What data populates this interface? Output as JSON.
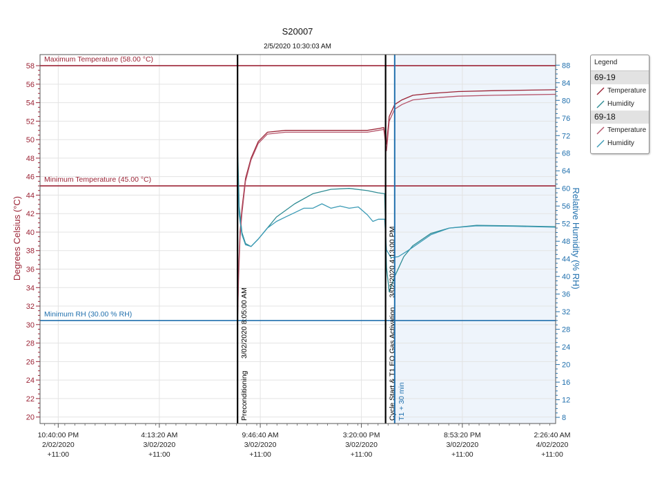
{
  "chart_data": {
    "type": "line",
    "title": "S20007",
    "subtitle": "2/5/2020 10:30:03 AM",
    "ylabel_left": "Degrees Celsius (°C)",
    "ylabel_right": "Relative Humidity (% RH)",
    "xlabel": "",
    "x_range_hours": [
      0,
      28.35
    ],
    "ylim_left": [
      19.3,
      59.2
    ],
    "ylim_right": [
      6.6,
      90.4
    ],
    "y_ticks_left": [
      20,
      22,
      24,
      26,
      28,
      30,
      32,
      34,
      36,
      38,
      40,
      42,
      44,
      46,
      48,
      50,
      52,
      54,
      56,
      58
    ],
    "y_ticks_right": [
      8,
      12,
      16,
      20,
      24,
      28,
      32,
      36,
      40,
      44,
      48,
      52,
      56,
      60,
      64,
      68,
      72,
      76,
      80,
      84,
      88
    ],
    "x_ticks": [
      {
        "t": 1.0,
        "lines": [
          "10:40:00 PM",
          "2/02/2020",
          "+11:00"
        ]
      },
      {
        "t": 6.56,
        "lines": [
          "4:13:20 AM",
          "3/02/2020",
          "+11:00"
        ]
      },
      {
        "t": 12.11,
        "lines": [
          "9:46:40 AM",
          "3/02/2020",
          "+11:00"
        ]
      },
      {
        "t": 17.67,
        "lines": [
          "3:20:00 PM",
          "3/02/2020",
          "+11:00"
        ]
      },
      {
        "t": 23.22,
        "lines": [
          "8:53:20 PM",
          "3/02/2020",
          "+11:00"
        ]
      },
      {
        "t": 28.78,
        "lines": [
          "2:26:40 AM",
          "4/02/2020",
          "+11:00"
        ]
      }
    ],
    "limit_lines": [
      {
        "axis": "left",
        "value": 58,
        "label": "Maximum Temperature (58.00 °C)",
        "color": "#9b2335"
      },
      {
        "axis": "left",
        "value": 45,
        "label": "Minimum Temperature (45.00 °C)",
        "color": "#9b2335"
      },
      {
        "axis": "right",
        "value": 30,
        "label": "Minimum RH (30.00 % RH)",
        "color": "#1f6fad"
      }
    ],
    "markers": [
      {
        "t": 10.86,
        "label": "3/02/2020 8:05:00 AM",
        "label2": "Preconditioning",
        "color": "#000000"
      },
      {
        "t": 19.0,
        "label": "3/02/2020 4:13:00 PM",
        "label2": "Cycle Start & T1 EO Gas Activation",
        "color": "#000000"
      },
      {
        "t": 19.5,
        "label": "T1 + 30 min",
        "label2": "",
        "color": "#1f6fad"
      }
    ],
    "shaded_region": {
      "from_t": 19.5,
      "color": "#eef4fb"
    },
    "series": [
      {
        "group": "69-19",
        "name": "Temperature",
        "axis": "left",
        "color": "#9b2335",
        "x": [
          10.85,
          10.92,
          11.0,
          11.1,
          11.3,
          11.6,
          12.0,
          12.5,
          13.5,
          16.0,
          18.0,
          18.6,
          18.9,
          19.05,
          19.2,
          19.5,
          19.9,
          20.5,
          21.5,
          23.0,
          25.0,
          28.35
        ],
        "y": [
          29.5,
          36.0,
          40.0,
          42.5,
          45.8,
          48.0,
          49.8,
          50.8,
          51.0,
          51.0,
          51.0,
          51.2,
          51.3,
          49.5,
          52.5,
          53.8,
          54.3,
          54.8,
          55.0,
          55.2,
          55.3,
          55.4
        ]
      },
      {
        "group": "69-19",
        "name": "Humidity",
        "axis": "right",
        "color": "#2e8b93",
        "x": [
          10.85,
          10.95,
          11.1,
          11.3,
          11.6,
          12.0,
          12.5,
          13.0,
          14.0,
          15.0,
          16.0,
          17.0,
          18.0,
          18.6,
          18.95,
          19.05,
          19.2,
          19.5,
          20.0,
          20.5,
          21.5,
          22.5,
          24.0,
          26.0,
          28.35
        ],
        "y": [
          72.0,
          56.0,
          50.0,
          47.5,
          46.8,
          48.5,
          51.0,
          53.5,
          56.5,
          58.8,
          59.8,
          60.0,
          59.5,
          59.0,
          58.8,
          42.0,
          36.5,
          40.0,
          44.5,
          47.0,
          49.8,
          51.0,
          51.6,
          51.5,
          51.3
        ]
      },
      {
        "group": "69-18",
        "name": "Temperature",
        "axis": "left",
        "color": "#b5546a",
        "x": [
          10.85,
          10.92,
          11.0,
          11.1,
          11.3,
          11.6,
          12.0,
          12.5,
          13.5,
          16.0,
          18.0,
          18.6,
          18.9,
          19.05,
          19.2,
          19.5,
          19.9,
          20.5,
          21.5,
          23.0,
          25.0,
          28.35
        ],
        "y": [
          29.5,
          35.0,
          39.5,
          42.0,
          45.5,
          47.8,
          49.6,
          50.6,
          50.8,
          50.8,
          50.8,
          51.0,
          51.1,
          48.8,
          52.0,
          53.3,
          53.8,
          54.3,
          54.5,
          54.7,
          54.8,
          54.9
        ]
      },
      {
        "group": "69-18",
        "name": "Humidity",
        "axis": "right",
        "color": "#3a9ab5",
        "x": [
          10.85,
          10.95,
          11.1,
          11.3,
          11.6,
          12.0,
          12.5,
          13.0,
          13.5,
          14.0,
          14.5,
          15.0,
          15.5,
          16.0,
          16.5,
          17.0,
          17.5,
          18.0,
          18.3,
          18.6,
          18.95,
          19.05,
          19.3,
          19.7,
          20.2,
          20.8,
          21.5,
          22.5,
          24.0,
          26.0,
          28.35
        ],
        "y": [
          66.0,
          54.0,
          49.5,
          47.2,
          46.8,
          48.5,
          51.0,
          52.5,
          53.5,
          54.5,
          55.5,
          55.5,
          56.5,
          55.5,
          56.0,
          55.5,
          55.8,
          54.0,
          52.5,
          53.0,
          53.0,
          46.0,
          44.3,
          44.5,
          45.8,
          47.5,
          49.5,
          51.0,
          51.5,
          51.4,
          51.2
        ]
      }
    ]
  },
  "legend": {
    "title": "Legend",
    "groups": [
      {
        "name": "69-19",
        "items": [
          {
            "label": "Temperature",
            "color": "#9b2335"
          },
          {
            "label": "Humidity",
            "color": "#2e8b93"
          }
        ]
      },
      {
        "name": "69-18",
        "items": [
          {
            "label": "Temperature",
            "color": "#b5546a"
          },
          {
            "label": "Humidity",
            "color": "#3a9ab5"
          }
        ]
      }
    ]
  }
}
